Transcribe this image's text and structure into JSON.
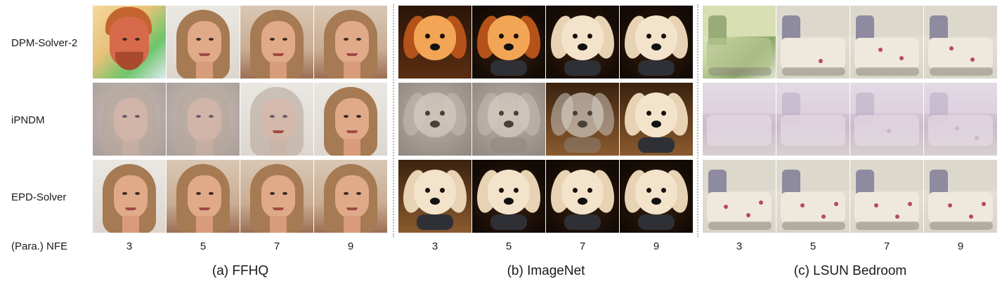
{
  "row_labels": [
    "DPM-Solver-2",
    "iPNDM",
    "EPD-Solver"
  ],
  "nfe_row_label": "(Para.) NFE",
  "panels": [
    {
      "caption": "(a) FFHQ",
      "subject": "face",
      "nfe": [
        "3",
        "5",
        "7",
        "9"
      ]
    },
    {
      "caption": "(b) ImageNet",
      "subject": "dog",
      "nfe": [
        "3",
        "5",
        "7",
        "9"
      ]
    },
    {
      "caption": "(c) LSUN Bedroom",
      "subject": "bedroom",
      "nfe": [
        "3",
        "5",
        "7",
        "9"
      ]
    }
  ],
  "colors": {
    "separator": "#b8b8b8",
    "text": "#1a1a1a"
  }
}
